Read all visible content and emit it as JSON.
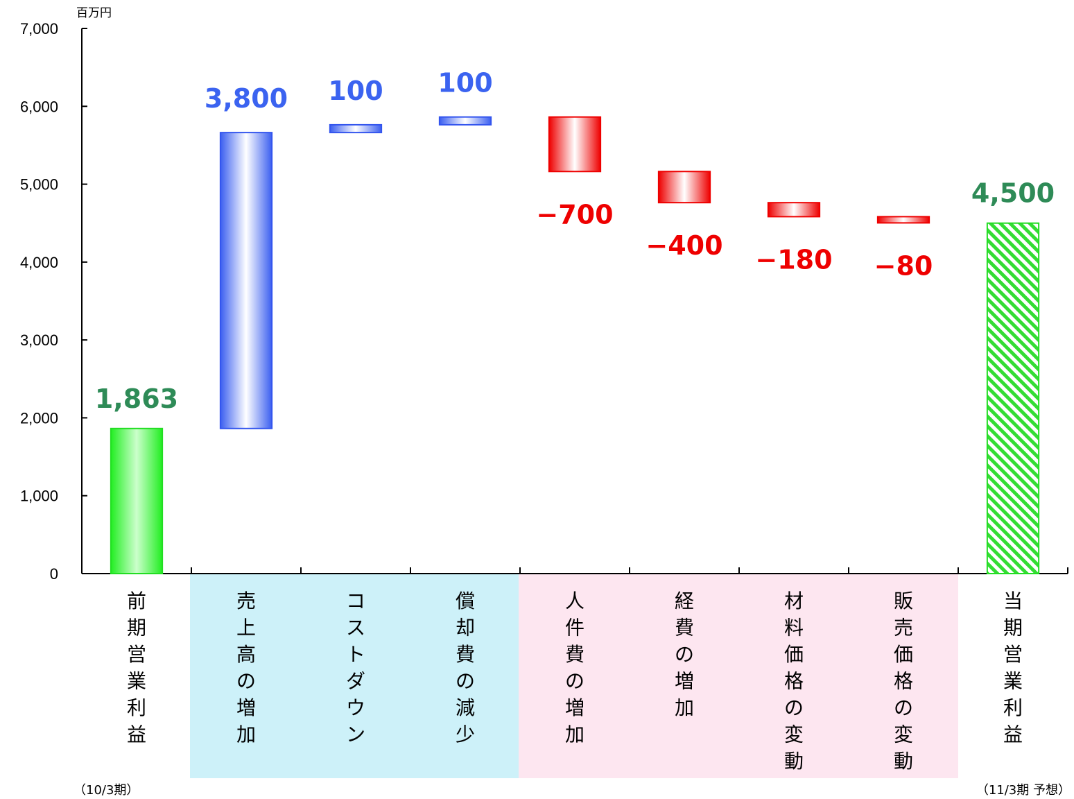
{
  "chart_data": {
    "type": "bar",
    "subtype": "waterfall",
    "unit_label": "百万円",
    "ylim": [
      0,
      7000
    ],
    "y_ticks": [
      "0",
      "1,000",
      "2,000",
      "3,000",
      "4,000",
      "5,000",
      "6,000",
      "7,000"
    ],
    "grid": false,
    "categories": [
      "前期営業利益",
      "売上高の増加",
      "コストダウン",
      "償却費の減少",
      "人件費の増加",
      "経費の増加",
      "材料価格の変動",
      "販売価格の変動",
      "当期営業利益"
    ],
    "values": [
      1863,
      3800,
      100,
      100,
      -700,
      -400,
      -180,
      -80,
      4500
    ],
    "data_labels": [
      "1,863",
      "3,800",
      "100",
      "100",
      "−700",
      "−400",
      "−180",
      "−80",
      "4,500"
    ],
    "bar_kind": [
      "total",
      "increase",
      "increase",
      "increase",
      "decrease",
      "decrease",
      "decrease",
      "decrease",
      "total-forecast"
    ],
    "groups": [
      {
        "name": "increase",
        "from": 1,
        "to": 3,
        "color": "#cdf1f9"
      },
      {
        "name": "decrease",
        "from": 4,
        "to": 7,
        "color": "#fde6f0"
      }
    ],
    "period_start_note": "（10/3期）",
    "period_end_note": "（11/3期 予想）",
    "colors": {
      "total": "#33ee33",
      "increase": "#3b63f0",
      "decrease": "#ee0000",
      "total_label": "#2e8b57"
    }
  }
}
